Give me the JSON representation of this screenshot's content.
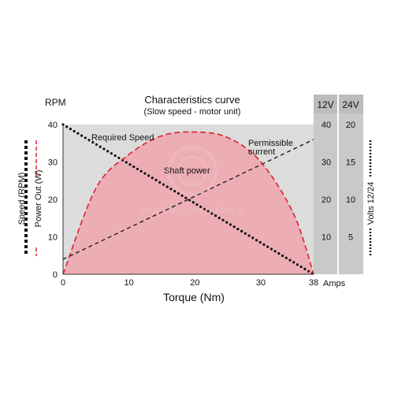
{
  "chart_data": {
    "type": "area",
    "title": "Characteristics curve",
    "subtitle": "(Slow speed - motor unit)",
    "xlabel": "Torque (Nm)",
    "x_ticks": [
      "0",
      "10",
      "20",
      "30",
      "38"
    ],
    "xlim": [
      0,
      38
    ],
    "left_axis": {
      "unit_label": "RPM",
      "ticks": [
        "0",
        "10",
        "20",
        "30",
        "40"
      ],
      "ylim": [
        0,
        40
      ],
      "legend": [
        {
          "label": "Speed (RPM)",
          "style": "dotted",
          "color": "#111111"
        },
        {
          "label": "Power Out (W)",
          "style": "dashed",
          "color": "#e0202e"
        }
      ]
    },
    "amps_axis": {
      "unit_label": "Amps",
      "ticks": [
        "10",
        "20",
        "30",
        "40"
      ]
    },
    "volts_axis": {
      "header_12": "12V",
      "header_24": "24V",
      "ticks_24": [
        "5",
        "10",
        "15",
        "20"
      ],
      "legend_label": "Volts 12/24"
    },
    "series": [
      {
        "name": "Required Speed",
        "style": "dotted",
        "color": "#111111",
        "x": [
          0,
          38
        ],
        "y": [
          40,
          0
        ]
      },
      {
        "name": "Permissible current",
        "style": "dashed",
        "color": "#111111",
        "x": [
          0,
          38
        ],
        "y": [
          4,
          36
        ]
      },
      {
        "name": "Shaft power",
        "style": "dashed-fill",
        "color": "#e0202e",
        "fill": "#ecadb4",
        "x": [
          0,
          5,
          10,
          15,
          20,
          25,
          30,
          35,
          38
        ],
        "y": [
          0,
          23,
          32,
          37,
          38,
          36.5,
          30,
          16,
          0
        ]
      }
    ],
    "grid": false,
    "background": "#dcdcdc",
    "watermark": "SANDBELLWHOLESALE"
  }
}
